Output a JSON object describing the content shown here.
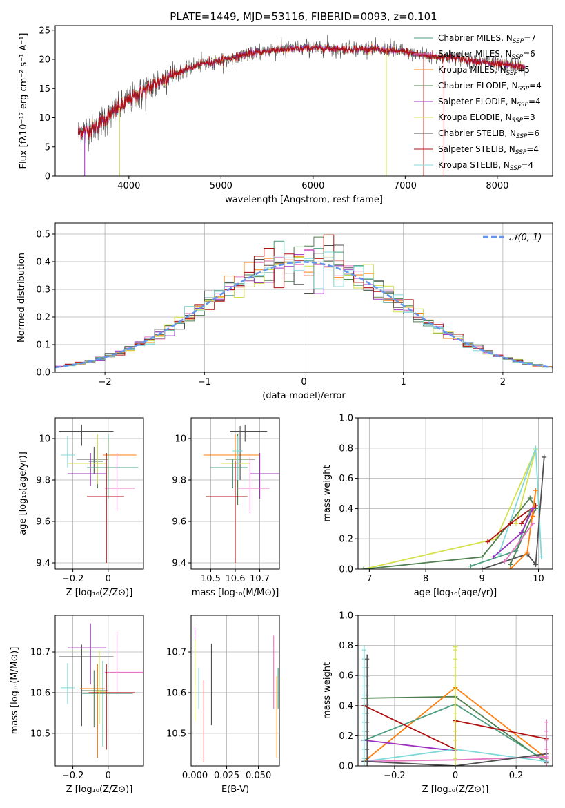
{
  "figure": {
    "title": "PLATE=1449, MJD=53116, FIBERID=0093, z=0.101"
  },
  "models": [
    {
      "name": "Chabrier MILES",
      "nssp": "7",
      "color": "#4a9e7e"
    },
    {
      "name": "Salpeter MILES",
      "nssp": "6",
      "color": "#e377c2"
    },
    {
      "name": "Kroupa MILES",
      "nssp": "5",
      "color": "#ff7f0e"
    },
    {
      "name": "Chabrier ELODIE",
      "nssp": "4",
      "color": "#4f7f4f"
    },
    {
      "name": "Salpeter ELODIE",
      "nssp": "4",
      "color": "#9b30c0"
    },
    {
      "name": "Kroupa ELODIE",
      "nssp": "3",
      "color": "#d4e04a"
    },
    {
      "name": "Chabrier STELIB",
      "nssp": "6",
      "color": "#505050"
    },
    {
      "name": "Salpeter STELIB",
      "nssp": "4",
      "color": "#b01010"
    },
    {
      "name": "Kroupa STELIB",
      "nssp": "4",
      "color": "#80d8d8"
    }
  ],
  "chart_data": [
    {
      "id": "spectrum",
      "type": "line",
      "xlabel": "wavelength [Angstrom, rest frame]",
      "ylabel": "Flux [fλ10⁻¹⁷ erg cm⁻² s⁻¹ A⁻¹]",
      "xlim": [
        3200,
        8600
      ],
      "ylim": [
        0,
        25.8
      ],
      "xticks": [
        4000,
        5000,
        6000,
        7000,
        8000
      ],
      "yticks": [
        0,
        5,
        10,
        15,
        20,
        25
      ],
      "legend": "right",
      "continuum": {
        "x": [
          3450,
          3600,
          3800,
          4000,
          4200,
          4400,
          4600,
          4800,
          5000,
          5200,
          5400,
          5600,
          5800,
          6000,
          6200,
          6400,
          6600,
          6800,
          7000,
          7200,
          7400,
          7600,
          7800,
          8000,
          8300
        ],
        "y": [
          7.5,
          8,
          10.5,
          13,
          15,
          16.8,
          18.2,
          19.3,
          19.8,
          20.6,
          21.2,
          21.6,
          21.8,
          22,
          21.9,
          21.7,
          21.8,
          21.5,
          21.3,
          20.7,
          20.4,
          20.1,
          19.6,
          19.2,
          18.7
        ]
      }
    },
    {
      "id": "residuals",
      "type": "bar",
      "xlabel": "(data-model)/error",
      "ylabel": "Normed distribution",
      "xlim": [
        -2.5,
        2.5
      ],
      "ylim": [
        0,
        0.54
      ],
      "xticks": [
        -2,
        -1,
        0,
        1,
        2
      ],
      "yticks": [
        0,
        0.1,
        0.2,
        0.3,
        0.4,
        0.5
      ],
      "legend": "top-right",
      "gaussian_label": "𝒩(0, 1)",
      "gaussian_color": "#6495ed"
    },
    {
      "id": "age-vs-Z",
      "type": "scatter",
      "xlabel": "Z [log₁₀(Z/Z⊙)]",
      "ylabel": "age  [log₁₀(age/yr)]",
      "xlim": [
        -0.3,
        0.2
      ],
      "ylim": [
        9.37,
        10.1
      ],
      "xticks": [
        -0.2,
        0.0
      ],
      "yticks": [
        9.4,
        9.6,
        9.8,
        10.0
      ],
      "points": [
        {
          "x": -0.15,
          "y": 10.035,
          "xe": [
            0.13,
            0.18
          ],
          "ye": [
            0.07,
            0.03
          ],
          "m": 6
        },
        {
          "x": -0.23,
          "y": 9.92,
          "xe": [
            0.04,
            0.04
          ],
          "ye": [
            0.06,
            0.09
          ],
          "m": 8
        },
        {
          "x": -0.08,
          "y": 9.9,
          "xe": [
            0.1,
            0.08
          ],
          "ye": [
            0.07,
            0.06
          ],
          "m": 6
        },
        {
          "x": 0.0,
          "y": 9.92,
          "xe": [
            0.03,
            0.16
          ],
          "ye": [
            0.11,
            0.08
          ],
          "m": 2
        },
        {
          "x": -0.06,
          "y": 9.89,
          "xe": [
            0.05,
            0.03
          ],
          "ye": [
            0.13,
            0.05
          ],
          "m": 3
        },
        {
          "x": -0.06,
          "y": 9.88,
          "xe": [
            0.17,
            0.05
          ],
          "ye": [
            0.1,
            0.14
          ],
          "m": 5
        },
        {
          "x": -0.1,
          "y": 9.83,
          "xe": [
            0.13,
            0.09
          ],
          "ye": [
            0.06,
            0.1
          ],
          "m": 4
        },
        {
          "x": 0.0,
          "y": 9.86,
          "xe": [
            0.12,
            0.17
          ],
          "ye": [
            0.15,
            0.16
          ],
          "m": 0
        },
        {
          "x": 0.05,
          "y": 9.76,
          "xe": [
            0.07,
            0.1
          ],
          "ye": [
            0.11,
            0.17
          ],
          "m": 1
        },
        {
          "x": -0.01,
          "y": 9.72,
          "xe": [
            0.11,
            0.1
          ],
          "ye": [
            0.32,
            0.21
          ],
          "m": 7
        }
      ]
    },
    {
      "id": "age-vs-mass",
      "type": "scatter",
      "xlabel": "mass [log₁₀(M/M⊙)]",
      "ylabel": "",
      "xlim": [
        10.42,
        10.78
      ],
      "ylim": [
        9.37,
        10.1
      ],
      "xticks": [
        10.5,
        10.6,
        10.7
      ],
      "yticks": [
        9.4,
        9.6,
        9.8,
        10.0
      ],
      "points": [
        {
          "x": 10.64,
          "y": 10.035,
          "xe": [
            0.06,
            0.09
          ],
          "ye": [
            0.05,
            0.03
          ],
          "m": 6
        },
        {
          "x": 10.6,
          "y": 9.92,
          "xe": [
            0.13,
            0.1
          ],
          "ye": [
            0.06,
            0.1
          ],
          "m": 2
        },
        {
          "x": 10.62,
          "y": 9.9,
          "xe": [
            0.06,
            0.06
          ],
          "ye": [
            0.1,
            0.16
          ],
          "m": 6
        },
        {
          "x": 10.61,
          "y": 9.88,
          "xe": [
            0.07,
            0.05
          ],
          "ye": [
            0.13,
            0.14
          ],
          "m": 5
        },
        {
          "x": 10.61,
          "y": 9.9,
          "xe": [
            0.04,
            0.05
          ],
          "ye": [
            0.22,
            0.12
          ],
          "m": 3
        },
        {
          "x": 10.61,
          "y": 9.94,
          "xe": [
            0.02,
            0.02
          ],
          "ye": [
            0.14,
            0.07
          ],
          "m": 8
        },
        {
          "x": 10.7,
          "y": 9.83,
          "xe": [
            0.04,
            0.08
          ],
          "ye": [
            0.12,
            0.1
          ],
          "m": 4
        },
        {
          "x": 10.59,
          "y": 9.86,
          "xe": [
            0.09,
            0.06
          ],
          "ye": [
            0.1,
            0.04
          ],
          "m": 0
        },
        {
          "x": 10.66,
          "y": 9.76,
          "xe": [
            0.05,
            0.08
          ],
          "ye": [
            0.12,
            0.15
          ],
          "m": 1
        },
        {
          "x": 10.6,
          "y": 9.72,
          "xe": [
            0.12,
            0.05
          ],
          "ye": [
            0.32,
            0.17
          ],
          "m": 7
        }
      ]
    },
    {
      "id": "weight-vs-age",
      "type": "line",
      "xlabel": "age  [log₁₀(age/yr)]",
      "ylabel": "mass weight",
      "xlim": [
        6.8,
        10.25
      ],
      "ylim": [
        0,
        1.0
      ],
      "xticks": [
        7,
        8,
        9,
        10
      ],
      "yticks": [
        0.0,
        0.2,
        0.4,
        0.6,
        0.8,
        1.0
      ],
      "series": [
        {
          "m": 5,
          "x": [
            6.9,
            9.25,
            9.95,
            9.6
          ],
          "y": [
            0.0,
            0.2,
            0.79,
            0.3
          ]
        },
        {
          "m": 3,
          "x": [
            6.9,
            9.0,
            9.85,
            9.95,
            9.5
          ],
          "y": [
            0.0,
            0.08,
            0.47,
            0.4,
            0.03
          ]
        },
        {
          "m": 8,
          "x": [
            9.3,
            9.95,
            10.05
          ],
          "y": [
            0.1,
            0.8,
            0.08
          ]
        },
        {
          "m": 6,
          "x": [
            9.0,
            9.8,
            9.95,
            10.1
          ],
          "y": [
            0.0,
            0.1,
            0.03,
            0.74
          ]
        },
        {
          "m": 7,
          "x": [
            9.1,
            9.5,
            9.95,
            9.7
          ],
          "y": [
            0.18,
            0.3,
            0.42,
            0.3
          ]
        },
        {
          "m": 2,
          "x": [
            9.5,
            9.8,
            9.95,
            9.9
          ],
          "y": [
            0.0,
            0.11,
            0.52,
            0.35
          ]
        },
        {
          "m": 0,
          "x": [
            8.8,
            9.6,
            9.85
          ],
          "y": [
            0.02,
            0.12,
            0.38
          ]
        },
        {
          "m": 4,
          "x": [
            9.2,
            9.7,
            9.9
          ],
          "y": [
            0.08,
            0.24,
            0.4
          ]
        },
        {
          "m": 1,
          "x": [
            9.4,
            9.9
          ],
          "y": [
            0.05,
            0.3
          ]
        }
      ]
    },
    {
      "id": "mass-vs-Z",
      "type": "scatter",
      "xlabel": "Z [log₁₀(Z/Z⊙)]",
      "ylabel": "mass [log₁₀(M/M⊙)]",
      "xlim": [
        -0.3,
        0.2
      ],
      "ylim": [
        10.42,
        10.79
      ],
      "xticks": [
        -0.2,
        0.0
      ],
      "yticks": [
        10.5,
        10.6,
        10.7
      ],
      "points": [
        {
          "x": -0.15,
          "y": 10.688,
          "xe": [
            0.13,
            0.18
          ],
          "ye": [
            0.17,
            0.03
          ],
          "m": 6
        },
        {
          "x": -0.1,
          "y": 10.71,
          "xe": [
            0.13,
            0.09
          ],
          "ye": [
            0.09,
            0.06
          ],
          "m": 4
        },
        {
          "x": 0.05,
          "y": 10.65,
          "xe": [
            0.07,
            0.15
          ],
          "ye": [
            0.05,
            0.1
          ],
          "m": 1
        },
        {
          "x": -0.23,
          "y": 10.612,
          "xe": [
            0.04,
            0.04
          ],
          "ye": [
            0.04,
            0.06
          ],
          "m": 8
        },
        {
          "x": -0.06,
          "y": 10.61,
          "xe": [
            0.1,
            0.04
          ],
          "ye": [
            0.17,
            0.06
          ],
          "m": 2
        },
        {
          "x": -0.08,
          "y": 10.605,
          "xe": [
            0.07,
            0.08
          ],
          "ye": [
            0.09,
            0.05
          ],
          "m": 3
        },
        {
          "x": -0.01,
          "y": 10.6,
          "xe": [
            0.1,
            0.16
          ],
          "ye": [
            0.14,
            0.07
          ],
          "m": 7
        },
        {
          "x": -0.03,
          "y": 10.598,
          "xe": [
            0.12,
            0.17
          ],
          "ye": [
            0.13,
            0.08
          ],
          "m": 0
        },
        {
          "x": -0.05,
          "y": 10.603,
          "xe": [
            0.02,
            0.04
          ],
          "ye": [
            0.08,
            0.1
          ],
          "m": 5
        }
      ]
    },
    {
      "id": "mass-vs-EBV",
      "type": "scatter",
      "xlabel": "E(B-V)",
      "ylabel": "",
      "xlim": [
        -0.003,
        0.0665
      ],
      "ylim": [
        10.42,
        10.79
      ],
      "xticks": [
        0.0,
        0.025,
        0.05
      ],
      "xticklabels": [
        "0.000",
        "0.025",
        "0.050"
      ],
      "yticks": [
        10.5,
        10.6,
        10.7
      ],
      "points": [
        {
          "x": 0.0,
          "y": 10.69,
          "xe": [
            0,
            0
          ],
          "ye": [
            0.07,
            0.07
          ],
          "m": 4
        },
        {
          "x": 0.0,
          "y": 10.63,
          "xe": [
            0,
            0
          ],
          "ye": [
            0.1,
            0.1
          ],
          "m": 5
        },
        {
          "x": 0.003,
          "y": 10.61,
          "xe": [
            0,
            0
          ],
          "ye": [
            0.05,
            0.05
          ],
          "m": 8
        },
        {
          "x": 0.007,
          "y": 10.53,
          "xe": [
            0,
            0
          ],
          "ye": [
            0.1,
            0.1
          ],
          "m": 7
        },
        {
          "x": 0.013,
          "y": 10.62,
          "xe": [
            0,
            0
          ],
          "ye": [
            0.1,
            0.1
          ],
          "m": 6
        },
        {
          "x": 0.062,
          "y": 10.65,
          "xe": [
            0,
            0
          ],
          "ye": [
            0.09,
            0.09
          ],
          "m": 1
        },
        {
          "x": 0.0645,
          "y": 10.54,
          "xe": [
            0,
            0
          ],
          "ye": [
            0.1,
            0.1
          ],
          "m": 2
        },
        {
          "x": 0.0655,
          "y": 10.61,
          "xe": [
            0,
            0
          ],
          "ye": [
            0.05,
            0.05
          ],
          "m": 0
        }
      ]
    },
    {
      "id": "weight-vs-Z",
      "type": "line",
      "xlabel": "Z [log₁₀(Z/Z⊙)]",
      "ylabel": "mass weight",
      "xlim": [
        -0.32,
        0.32
      ],
      "ylim": [
        0,
        1.0
      ],
      "xticks": [
        -0.2,
        0.0,
        0.2
      ],
      "yticks": [
        0.0,
        0.2,
        0.4,
        0.6,
        0.8,
        1.0
      ],
      "series": [
        {
          "m": 3,
          "x": [
            -0.3,
            0.0,
            0.3
          ],
          "y": [
            0.45,
            0.46,
            0.02
          ]
        },
        {
          "m": 2,
          "x": [
            -0.3,
            0.0,
            0.3
          ],
          "y": [
            0.03,
            0.52,
            0.05
          ]
        },
        {
          "m": 0,
          "x": [
            -0.3,
            0.0,
            0.3
          ],
          "y": [
            0.17,
            0.41,
            0.03
          ]
        },
        {
          "m": 7,
          "x": [
            -0.3,
            0.0,
            0.0,
            0.3
          ],
          "y": [
            0.4,
            0.11,
            0.3,
            0.18
          ]
        },
        {
          "m": 4,
          "x": [
            -0.3,
            0.0
          ],
          "y": [
            0.17,
            0.1
          ]
        },
        {
          "m": 8,
          "x": [
            -0.3,
            0.0,
            0.3
          ],
          "y": [
            0.03,
            0.11,
            0.03
          ]
        },
        {
          "m": 1,
          "x": [
            -0.3,
            0.0,
            0.3
          ],
          "y": [
            0.03,
            0.04,
            0.06
          ]
        },
        {
          "m": 6,
          "x": [
            -0.3,
            0.0,
            0.3
          ],
          "y": [
            0.03,
            0.0,
            0.08
          ]
        },
        {
          "m": 5,
          "x": [
            0.0
          ],
          "y": [
            0.79
          ]
        }
      ],
      "stems": [
        {
          "m": 8,
          "x": -0.3,
          "y": 0.8
        },
        {
          "m": 6,
          "x": -0.29,
          "y": 0.74
        },
        {
          "m": 5,
          "x": 0.0,
          "y": 0.79
        },
        {
          "m": 1,
          "x": 0.3,
          "y": 0.31
        }
      ]
    }
  ]
}
